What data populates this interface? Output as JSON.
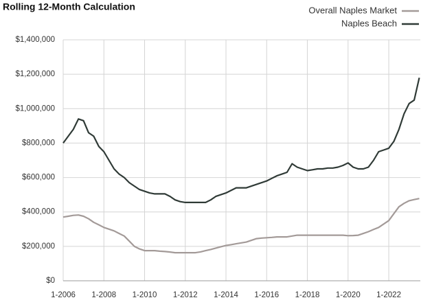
{
  "chart_data": {
    "type": "line",
    "title": "Rolling 12-Month Calculation",
    "x": [
      2006,
      2006.25,
      2006.5,
      2006.75,
      2007,
      2007.25,
      2007.5,
      2007.75,
      2008,
      2008.25,
      2008.5,
      2008.75,
      2009,
      2009.25,
      2009.5,
      2009.75,
      2010,
      2010.25,
      2010.5,
      2010.75,
      2011,
      2011.25,
      2011.5,
      2011.75,
      2012,
      2012.25,
      2012.5,
      2012.75,
      2013,
      2013.25,
      2013.5,
      2013.75,
      2014,
      2014.25,
      2014.5,
      2014.75,
      2015,
      2015.25,
      2015.5,
      2015.75,
      2016,
      2016.25,
      2016.5,
      2016.75,
      2017,
      2017.25,
      2017.5,
      2017.75,
      2018,
      2018.25,
      2018.5,
      2018.75,
      2019,
      2019.25,
      2019.5,
      2019.75,
      2020,
      2020.25,
      2020.5,
      2020.75,
      2021,
      2021.25,
      2021.5,
      2021.75,
      2022,
      2022.25,
      2022.5,
      2022.75,
      2023,
      2023.25,
      2023.5
    ],
    "series": [
      {
        "name": "Overall Naples Market",
        "color": "#a39a98",
        "values": [
          370000,
          375000,
          380000,
          382000,
          375000,
          360000,
          340000,
          325000,
          310000,
          300000,
          290000,
          275000,
          260000,
          230000,
          200000,
          185000,
          175000,
          175000,
          175000,
          172000,
          170000,
          167000,
          163000,
          163000,
          163000,
          163000,
          163000,
          168000,
          175000,
          182000,
          190000,
          198000,
          205000,
          210000,
          215000,
          220000,
          225000,
          235000,
          245000,
          248000,
          250000,
          252000,
          255000,
          255000,
          255000,
          260000,
          265000,
          265000,
          265000,
          265000,
          265000,
          265000,
          265000,
          265000,
          265000,
          265000,
          262000,
          263000,
          265000,
          275000,
          285000,
          298000,
          310000,
          330000,
          350000,
          390000,
          430000,
          450000,
          465000,
          472000,
          478000
        ]
      },
      {
        "name": "Naples Beach",
        "color": "#2f3a36",
        "values": [
          800000,
          840000,
          880000,
          940000,
          930000,
          860000,
          840000,
          780000,
          750000,
          700000,
          650000,
          620000,
          600000,
          570000,
          550000,
          530000,
          520000,
          510000,
          505000,
          505000,
          505000,
          490000,
          470000,
          460000,
          455000,
          455000,
          455000,
          455000,
          455000,
          470000,
          490000,
          500000,
          510000,
          525000,
          540000,
          540000,
          540000,
          550000,
          560000,
          570000,
          580000,
          595000,
          610000,
          620000,
          630000,
          680000,
          660000,
          650000,
          640000,
          645000,
          650000,
          650000,
          655000,
          655000,
          660000,
          670000,
          685000,
          660000,
          650000,
          650000,
          660000,
          700000,
          750000,
          760000,
          770000,
          810000,
          880000,
          970000,
          1030000,
          1050000,
          1180000
        ]
      }
    ],
    "xlim": [
      2006,
      2023.55
    ],
    "xticks": [
      {
        "value": 2006,
        "label": "1-2006"
      },
      {
        "value": 2008,
        "label": "1-2008"
      },
      {
        "value": 2010,
        "label": "1-2010"
      },
      {
        "value": 2012,
        "label": "1-2012"
      },
      {
        "value": 2014,
        "label": "1-2014"
      },
      {
        "value": 2016,
        "label": "1-2016"
      },
      {
        "value": 2018,
        "label": "1-2018"
      },
      {
        "value": 2020,
        "label": "1-2020"
      },
      {
        "value": 2022,
        "label": "1-2022"
      }
    ],
    "ylim": [
      0,
      1400000
    ],
    "yticks": [
      {
        "value": 0,
        "label": "$0"
      },
      {
        "value": 200000,
        "label": "$200,000"
      },
      {
        "value": 400000,
        "label": "$400,000"
      },
      {
        "value": 600000,
        "label": "$600,000"
      },
      {
        "value": 800000,
        "label": "$800,000"
      },
      {
        "value": 1000000,
        "label": "$1,000,000"
      },
      {
        "value": 1200000,
        "label": "$1,200,000"
      },
      {
        "value": 1400000,
        "label": "$1,400,000"
      }
    ],
    "grid": true,
    "legend": "upper right"
  }
}
